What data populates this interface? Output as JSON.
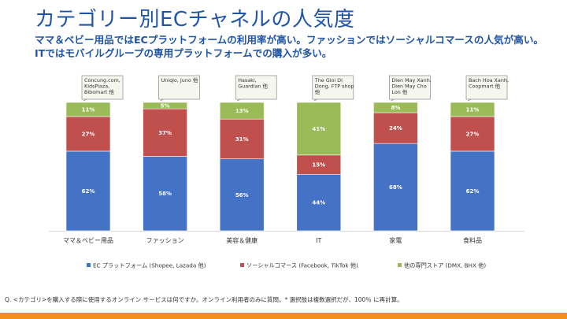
{
  "title": "カテゴリー別ECチャネルの人気度",
  "subtitle": "ママ＆ベビー用品ではECプラットフォームの利用率が高い。ファッションではソーシャルコマースの人気が高い。ITではモバイルグループの専用プラットフォームでの購入が多い。",
  "footnote": "Q. <カテゴリ>を購入する際に使用するオンライン サービスは何ですか。オンライン利用者のみに質問。* 選択肢は複数選択だが、100％ に再計算。",
  "colors": {
    "ec": "#4472c4",
    "social": "#c0504d",
    "own": "#9bbb59",
    "accent": "#f28e1c"
  },
  "chart_data": {
    "type": "bar",
    "stacked": true,
    "categories": [
      "ママ＆ベビー用品",
      "ファッション",
      "美容＆健康",
      "IT",
      "家電",
      "食料品"
    ],
    "series": [
      {
        "name": "EC プラットフォーム (Shopee, Lazada 他)",
        "values": [
          62,
          58,
          56,
          44,
          68,
          62
        ]
      },
      {
        "name": "ソーシャルコマース (Facebook, TikTok 他)",
        "values": [
          27,
          37,
          31,
          15,
          24,
          27
        ]
      },
      {
        "name": "他の専門ストア (DMX, BHX 他)",
        "values": [
          11,
          5,
          13,
          41,
          8,
          11
        ]
      }
    ],
    "data_labels": [
      [
        "62%",
        "58%",
        "56%",
        "44%",
        "68%",
        "62%"
      ],
      [
        "27%",
        "37%",
        "31%",
        "15%",
        "24%",
        "27%"
      ],
      [
        "11%",
        "5%",
        "13%",
        "41%",
        "8%",
        "11%"
      ]
    ],
    "callouts": [
      "Concung.com, KidsPlaza, Bibomart 他",
      "Uniqlo, Juno 他",
      "Hasaki, Guardian 他",
      "The Gioi Di Dong, FTP shop 他",
      "Dien May Xanh, Dien May Cho Lon 他",
      "Bach Hoa Xanh, Coopmart 他"
    ],
    "ylim": [
      0,
      100
    ],
    "grid": false,
    "legend_position": "bottom"
  }
}
